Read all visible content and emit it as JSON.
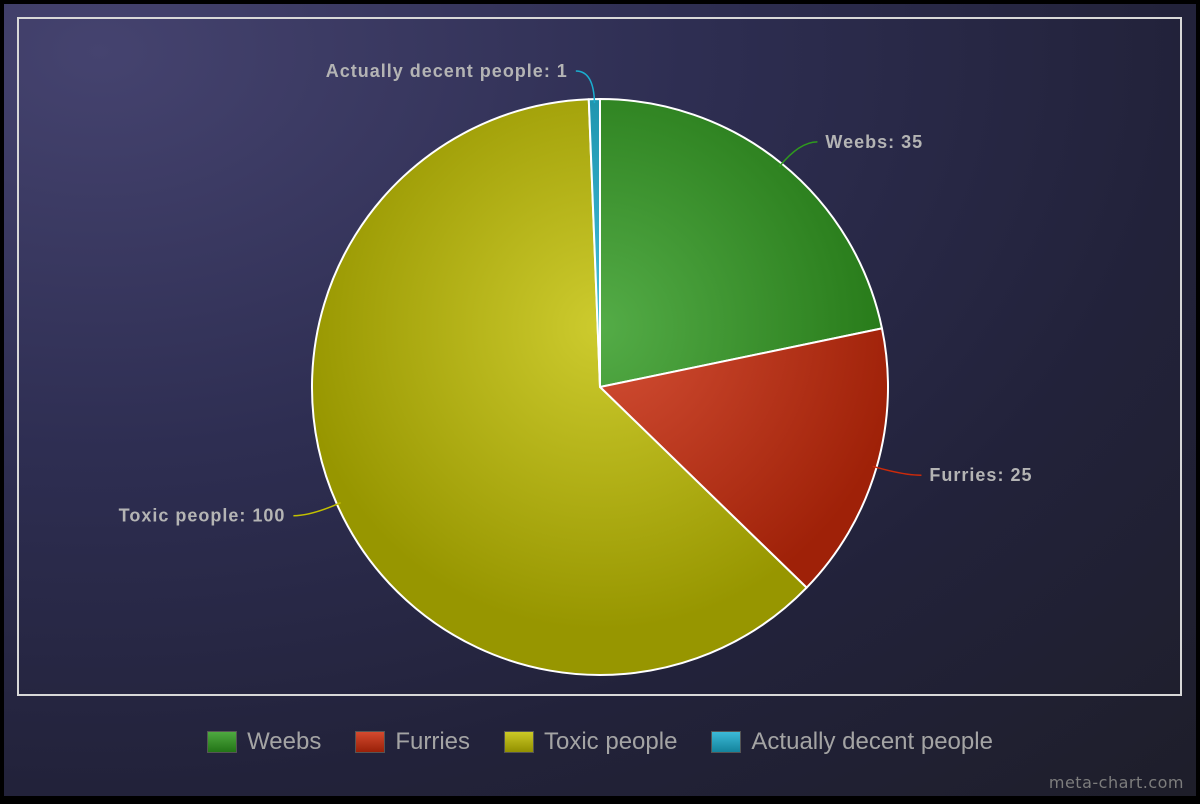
{
  "chart_data": {
    "type": "pie",
    "title": "",
    "categories": [
      "Weebs",
      "Furries",
      "Toxic people",
      "Actually decent people"
    ],
    "values": [
      35,
      25,
      100,
      1
    ],
    "slice_labels": [
      "Weebs: 35",
      "Furries: 25",
      "Toxic people: 100",
      "Actually decent people: 1"
    ],
    "colors": [
      "#2f9a1e",
      "#cc2a0a",
      "#c2c000",
      "#1aaed0"
    ],
    "legend_position": "bottom"
  },
  "watermark": "meta-chart.com"
}
